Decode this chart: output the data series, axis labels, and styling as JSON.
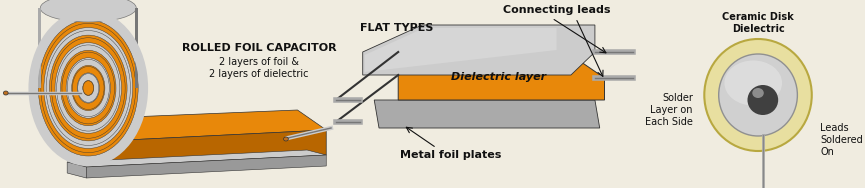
{
  "bg_color": "#f0ece0",
  "orange": "#E8880A",
  "silver": "#aaaaaa",
  "silver_dark": "#777777",
  "silver_light": "#cccccc",
  "silver_highlight": "#e0e0e0",
  "dark_gray": "#333333",
  "black": "#111111",
  "cream": "#e8dfa0",
  "cream_border": "#c8b860",
  "white_silver": "#e8e8e8",
  "title1": "ROLLED FOIL CAPACITOR",
  "title1_sub": "2 layers of foil &\n2 layers of dielectric",
  "title2": "FLAT TYPES",
  "label_connecting": "Connecting leads",
  "label_dielectric": "Dielectric layer",
  "label_metal": "Metal foil plates",
  "label_ceramic": "Ceramic Disk\nDielectric",
  "label_solder": "Solder\nLayer on\nEach Side",
  "label_leads": "Leads\nSoldered\nOn"
}
